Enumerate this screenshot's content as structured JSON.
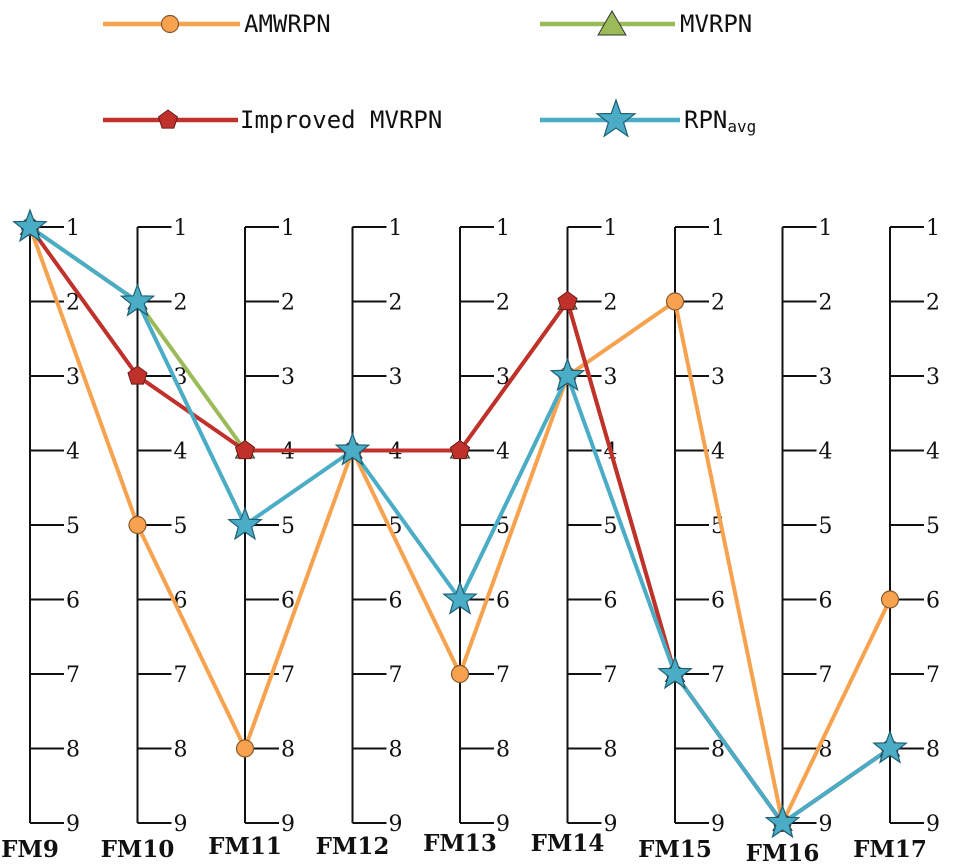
{
  "chart_data": {
    "type": "line",
    "chart_form": "parallel-axes ranking chart",
    "categories": [
      "FM9",
      "FM10",
      "FM11",
      "FM12",
      "FM13",
      "FM14",
      "FM15",
      "FM16",
      "FM17"
    ],
    "axis_ticks": [
      "1",
      "2",
      "3",
      "4",
      "5",
      "6",
      "7",
      "8",
      "9"
    ],
    "y_range": [
      1,
      9
    ],
    "y_inverted": true,
    "legend_placement": "top",
    "series": [
      {
        "name": "AMWRPN",
        "color": "#F7A24F",
        "marker": "circle",
        "values": [
          1,
          5,
          8,
          4,
          7,
          3,
          2,
          9,
          6
        ]
      },
      {
        "name": "MVRPN",
        "color": "#9BBB59",
        "marker": "triangle",
        "values": [
          1,
          2,
          4,
          4,
          4,
          2,
          7,
          9,
          8
        ]
      },
      {
        "name": "Improved MVRPN",
        "color": "#C0312B",
        "marker": "pentagon",
        "values": [
          1,
          3,
          4,
          4,
          4,
          2,
          7,
          9,
          8
        ]
      },
      {
        "name": "RPN",
        "name_subscript": "avg",
        "color": "#4BACC6",
        "marker": "star",
        "values": [
          1,
          2,
          5,
          4,
          6,
          3,
          7,
          9,
          8
        ]
      }
    ]
  }
}
